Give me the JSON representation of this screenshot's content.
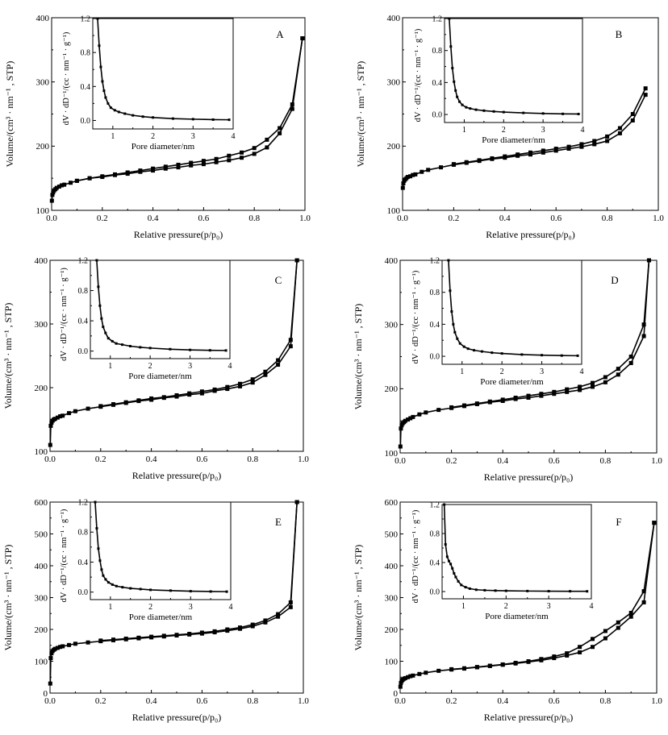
{
  "chart_data": [
    {
      "panel": "A",
      "type": "line",
      "xlabel": "Relative pressure(p/p₀)",
      "ylabel": "Volume/(cm³ · nm⁻¹ , STP)",
      "xlim": [
        0,
        1.0
      ],
      "ylim": [
        100,
        400
      ],
      "xticks": [
        0.0,
        0.2,
        0.4,
        0.6,
        0.8,
        1.0
      ],
      "yticks": [
        100,
        200,
        300,
        400
      ],
      "series": [
        {
          "x": [
            0.001,
            0.003,
            0.006,
            0.01,
            0.015,
            0.02,
            0.03,
            0.04,
            0.05,
            0.075,
            0.1,
            0.15,
            0.2,
            0.25,
            0.3,
            0.35,
            0.4,
            0.45,
            0.5,
            0.55,
            0.6,
            0.65,
            0.7,
            0.75,
            0.8,
            0.85,
            0.9,
            0.95,
            0.99
          ],
          "y": [
            115,
            124,
            128,
            131,
            133,
            135,
            137,
            139,
            140,
            143,
            146,
            150,
            152,
            155,
            157,
            160,
            162,
            165,
            167,
            170,
            172,
            175,
            178,
            182,
            188,
            198,
            220,
            258,
            368
          ]
        },
        {
          "x": [
            0.99,
            0.95,
            0.9,
            0.85,
            0.8,
            0.75,
            0.7,
            0.65,
            0.6,
            0.55,
            0.5,
            0.45,
            0.4,
            0.35,
            0.3,
            0.25,
            0.2,
            0.15,
            0.1
          ],
          "y": [
            368,
            265,
            228,
            210,
            197,
            190,
            185,
            180,
            177,
            174,
            171,
            168,
            165,
            162,
            159,
            156,
            153,
            150,
            146
          ]
        }
      ],
      "inset": {
        "xlabel": "Pore diameter/nm",
        "ylabel": "dV · dD⁻¹/(cc · nm⁻¹ · g⁻¹)",
        "xlim": [
          0.5,
          4
        ],
        "ylim": [
          -0.1,
          1.2
        ],
        "xticks": [
          1,
          2,
          3,
          4
        ],
        "yticks": [
          0.0,
          0.4,
          0.8,
          1.2
        ],
        "x": [
          0.62,
          0.66,
          0.7,
          0.74,
          0.78,
          0.82,
          0.88,
          0.95,
          1.05,
          1.15,
          1.3,
          1.5,
          1.75,
          2.0,
          2.5,
          3.0,
          3.5,
          3.9
        ],
        "y": [
          1.2,
          0.88,
          0.63,
          0.46,
          0.35,
          0.27,
          0.2,
          0.15,
          0.12,
          0.1,
          0.08,
          0.06,
          0.045,
          0.035,
          0.022,
          0.015,
          0.01,
          0.008
        ]
      }
    },
    {
      "panel": "B",
      "type": "line",
      "xlabel": "Relative pressure(p/p₀)",
      "ylabel": "Volume/(cm³ · nm⁻¹ , STP)",
      "xlim": [
        0,
        1.0
      ],
      "ylim": [
        100,
        400
      ],
      "xticks": [
        0.0,
        0.2,
        0.4,
        0.6,
        0.8,
        1.0
      ],
      "yticks": [
        100,
        200,
        300,
        400
      ],
      "series": [
        {
          "x": [
            0.001,
            0.003,
            0.006,
            0.01,
            0.015,
            0.02,
            0.03,
            0.04,
            0.05,
            0.075,
            0.1,
            0.15,
            0.2,
            0.25,
            0.3,
            0.35,
            0.4,
            0.45,
            0.5,
            0.55,
            0.6,
            0.65,
            0.7,
            0.75,
            0.8,
            0.85,
            0.9,
            0.95
          ],
          "y": [
            135,
            142,
            146,
            148,
            150,
            152,
            153,
            155,
            156,
            160,
            163,
            167,
            171,
            174,
            177,
            180,
            182,
            185,
            187,
            190,
            193,
            196,
            199,
            203,
            208,
            220,
            240,
            280
          ]
        },
        {
          "x": [
            0.95,
            0.9,
            0.85,
            0.8,
            0.75,
            0.7,
            0.65,
            0.6,
            0.55,
            0.5,
            0.45,
            0.4,
            0.35,
            0.3,
            0.25,
            0.2
          ],
          "y": [
            290,
            250,
            228,
            215,
            208,
            203,
            199,
            196,
            193,
            190,
            187,
            184,
            181,
            178,
            175,
            172
          ]
        }
      ],
      "inset": {
        "xlabel": "Pore diameter/nm",
        "ylabel": "dV · dD⁻¹/(cc · nm⁻¹ · g⁻¹)",
        "xlim": [
          0.5,
          4
        ],
        "ylim": [
          -0.1,
          1.2
        ],
        "xticks": [
          1,
          2,
          3,
          4
        ],
        "yticks": [
          0.0,
          0.4,
          0.8,
          1.2
        ],
        "x": [
          0.62,
          0.66,
          0.7,
          0.74,
          0.78,
          0.82,
          0.88,
          0.95,
          1.05,
          1.15,
          1.3,
          1.5,
          1.75,
          2.0,
          2.5,
          3.0,
          3.5,
          3.9
        ],
        "y": [
          1.2,
          0.85,
          0.58,
          0.41,
          0.3,
          0.22,
          0.16,
          0.12,
          0.09,
          0.075,
          0.06,
          0.048,
          0.038,
          0.03,
          0.02,
          0.013,
          0.008,
          0.006
        ]
      }
    },
    {
      "panel": "C",
      "type": "line",
      "xlabel": "Relative pressure(p/p₀)",
      "ylabel": "Volume/(cm³ · nm⁻¹ , STP)",
      "xlim": [
        0,
        1.0
      ],
      "ylim": [
        100,
        400
      ],
      "xticks": [
        0.0,
        0.2,
        0.4,
        0.6,
        0.8,
        1.0
      ],
      "yticks": [
        100,
        200,
        300,
        400
      ],
      "series": [
        {
          "x": [
            0.001,
            0.003,
            0.006,
            0.01,
            0.015,
            0.02,
            0.03,
            0.04,
            0.05,
            0.075,
            0.1,
            0.15,
            0.2,
            0.25,
            0.3,
            0.35,
            0.4,
            0.45,
            0.5,
            0.55,
            0.6,
            0.65,
            0.7,
            0.75,
            0.8,
            0.85,
            0.9,
            0.95,
            0.975
          ],
          "y": [
            110,
            140,
            145,
            148,
            150,
            151,
            153,
            155,
            156,
            160,
            163,
            167,
            170,
            173,
            176,
            179,
            181,
            184,
            186,
            189,
            191,
            195,
            198,
            202,
            208,
            220,
            236,
            265,
            400
          ]
        },
        {
          "x": [
            0.975,
            0.95,
            0.9,
            0.85,
            0.8,
            0.75,
            0.7,
            0.65,
            0.6,
            0.55,
            0.5,
            0.45,
            0.4,
            0.35,
            0.3,
            0.25,
            0.2
          ],
          "y": [
            400,
            275,
            243,
            225,
            213,
            206,
            201,
            197,
            194,
            191,
            188,
            185,
            183,
            180,
            177,
            174,
            171
          ]
        }
      ],
      "inset": {
        "xlabel": "Pore diameter/nm",
        "ylabel": "dV · dD⁻¹/(cc · nm⁻¹ · g⁻¹)",
        "xlim": [
          0.5,
          4
        ],
        "ylim": [
          -0.1,
          1.2
        ],
        "xticks": [
          1,
          2,
          3,
          4
        ],
        "yticks": [
          0.0,
          0.4,
          0.8,
          1.2
        ],
        "x": [
          0.66,
          0.7,
          0.74,
          0.78,
          0.82,
          0.88,
          0.95,
          1.05,
          1.15,
          1.3,
          1.5,
          1.75,
          2.0,
          2.5,
          3.0,
          3.5,
          3.9
        ],
        "y": [
          1.2,
          0.85,
          0.6,
          0.43,
          0.32,
          0.24,
          0.17,
          0.13,
          0.1,
          0.085,
          0.065,
          0.05,
          0.04,
          0.025,
          0.015,
          0.01,
          0.008
        ]
      }
    },
    {
      "panel": "D",
      "type": "line",
      "xlabel": "Relative pressure(p/p₀)",
      "ylabel": "Volume/(cm³ · nm⁻¹ , STP)",
      "xlim": [
        0,
        1.0
      ],
      "ylim": [
        100,
        400
      ],
      "xticks": [
        0.0,
        0.2,
        0.4,
        0.6,
        0.8,
        1.0
      ],
      "yticks": [
        100,
        200,
        300,
        400
      ],
      "series": [
        {
          "x": [
            0.001,
            0.003,
            0.006,
            0.01,
            0.015,
            0.02,
            0.03,
            0.04,
            0.05,
            0.075,
            0.1,
            0.15,
            0.2,
            0.25,
            0.3,
            0.35,
            0.4,
            0.45,
            0.5,
            0.55,
            0.6,
            0.65,
            0.7,
            0.75,
            0.8,
            0.85,
            0.9,
            0.95,
            0.97
          ],
          "y": [
            110,
            138,
            143,
            146,
            148,
            150,
            152,
            154,
            156,
            160,
            163,
            167,
            170,
            173,
            176,
            179,
            181,
            184,
            186,
            189,
            192,
            195,
            198,
            203,
            210,
            222,
            240,
            282,
            400
          ]
        },
        {
          "x": [
            0.97,
            0.95,
            0.9,
            0.85,
            0.8,
            0.75,
            0.7,
            0.65,
            0.6,
            0.55,
            0.5,
            0.45,
            0.4,
            0.35,
            0.3,
            0.25,
            0.2
          ],
          "y": [
            400,
            300,
            250,
            231,
            218,
            209,
            203,
            199,
            195,
            192,
            189,
            186,
            183,
            180,
            177,
            174,
            171
          ]
        }
      ],
      "inset": {
        "xlabel": "Pore diameter/nm",
        "ylabel": "dV · dD⁻¹/(cc · nm⁻¹ · g⁻¹)",
        "xlim": [
          0.5,
          4
        ],
        "ylim": [
          -0.1,
          1.2
        ],
        "xticks": [
          1,
          2,
          3,
          4
        ],
        "yticks": [
          0.0,
          0.4,
          0.8,
          1.2
        ],
        "x": [
          0.66,
          0.7,
          0.74,
          0.78,
          0.82,
          0.88,
          0.95,
          1.05,
          1.15,
          1.3,
          1.5,
          1.75,
          2.0,
          2.5,
          3.0,
          3.5,
          3.9
        ],
        "y": [
          1.2,
          0.82,
          0.56,
          0.4,
          0.3,
          0.22,
          0.16,
          0.12,
          0.095,
          0.075,
          0.06,
          0.045,
          0.035,
          0.022,
          0.014,
          0.009,
          0.007
        ]
      }
    },
    {
      "panel": "E",
      "type": "line",
      "xlabel": "Relative pressure(p/p₀)",
      "ylabel": "Volume/(cm³ · nm⁻¹ , STP)",
      "xlim": [
        0,
        1.0
      ],
      "ylim": [
        0,
        600
      ],
      "xticks": [
        0.0,
        0.2,
        0.4,
        0.6,
        0.8,
        1.0
      ],
      "yticks": [
        0,
        100,
        200,
        300,
        400,
        500,
        600
      ],
      "series": [
        {
          "x": [
            0.001,
            0.003,
            0.006,
            0.01,
            0.015,
            0.02,
            0.03,
            0.04,
            0.05,
            0.075,
            0.1,
            0.15,
            0.2,
            0.25,
            0.3,
            0.35,
            0.4,
            0.45,
            0.5,
            0.55,
            0.6,
            0.65,
            0.7,
            0.75,
            0.8,
            0.85,
            0.9,
            0.95,
            0.975
          ],
          "y": [
            30,
            110,
            125,
            132,
            136,
            139,
            142,
            145,
            147,
            151,
            155,
            159,
            163,
            166,
            169,
            172,
            175,
            178,
            181,
            184,
            187,
            191,
            196,
            202,
            210,
            222,
            240,
            270,
            600
          ]
        },
        {
          "x": [
            0.975,
            0.95,
            0.9,
            0.85,
            0.8,
            0.75,
            0.7,
            0.65,
            0.6,
            0.55,
            0.5,
            0.45,
            0.4,
            0.35,
            0.3,
            0.25,
            0.2
          ],
          "y": [
            600,
            285,
            248,
            228,
            215,
            206,
            200,
            194,
            190,
            186,
            183,
            180,
            177,
            174,
            171,
            168,
            165
          ]
        }
      ],
      "inset": {
        "xlabel": "Pore diameter/nm",
        "ylabel": "dV · dD⁻¹/(cc · nm⁻¹ · g⁻¹)",
        "xlim": [
          0.5,
          4
        ],
        "ylim": [
          -0.1,
          1.2
        ],
        "xticks": [
          1,
          2,
          3,
          4
        ],
        "yticks": [
          0.0,
          0.4,
          0.8,
          1.2
        ],
        "x": [
          0.62,
          0.66,
          0.7,
          0.74,
          0.78,
          0.82,
          0.88,
          0.95,
          1.05,
          1.15,
          1.3,
          1.5,
          1.75,
          2.0,
          2.5,
          3.0,
          3.5,
          3.9
        ],
        "y": [
          1.2,
          0.85,
          0.58,
          0.42,
          0.3,
          0.22,
          0.17,
          0.13,
          0.1,
          0.08,
          0.065,
          0.05,
          0.04,
          0.03,
          0.02,
          0.012,
          0.008,
          0.006
        ]
      }
    },
    {
      "panel": "F",
      "type": "line",
      "xlabel": "Relative pressure(p/p₀)",
      "ylabel": "Volume/(cm³ · nm⁻¹ , STP)",
      "xlim": [
        0,
        1.0
      ],
      "ylim": [
        0,
        600
      ],
      "xticks": [
        0.0,
        0.2,
        0.4,
        0.6,
        0.8,
        1.0
      ],
      "yticks": [
        0,
        100,
        200,
        300,
        400,
        500,
        600
      ],
      "series": [
        {
          "x": [
            0.001,
            0.003,
            0.006,
            0.01,
            0.015,
            0.02,
            0.03,
            0.04,
            0.05,
            0.075,
            0.1,
            0.15,
            0.2,
            0.25,
            0.3,
            0.35,
            0.4,
            0.45,
            0.5,
            0.55,
            0.6,
            0.65,
            0.7,
            0.75,
            0.8,
            0.85,
            0.9,
            0.95,
            0.99
          ],
          "y": [
            20,
            32,
            38,
            42,
            45,
            47,
            50,
            53,
            55,
            60,
            64,
            70,
            74,
            77,
            81,
            85,
            89,
            93,
            98,
            103,
            110,
            118,
            128,
            145,
            172,
            205,
            240,
            285,
            535
          ]
        },
        {
          "x": [
            0.99,
            0.95,
            0.9,
            0.85,
            0.8,
            0.75,
            0.7,
            0.65,
            0.6,
            0.55,
            0.5,
            0.45,
            0.4,
            0.35,
            0.3,
            0.25,
            0.2
          ],
          "y": [
            535,
            320,
            252,
            222,
            195,
            170,
            145,
            125,
            115,
            107,
            100,
            95,
            90,
            86,
            82,
            78,
            75
          ]
        }
      ],
      "inset": {
        "xlabel": "Pore diameter/nm",
        "ylabel": "dV · dD⁻¹/(cc · nm⁻¹ · g⁻¹)",
        "xlim": [
          0.5,
          4
        ],
        "ylim": [
          -0.1,
          1.2
        ],
        "xticks": [
          1,
          2,
          3,
          4
        ],
        "yticks": [
          0.0,
          0.4,
          0.8,
          1.2
        ],
        "x": [
          0.55,
          0.58,
          0.62,
          0.66,
          0.7,
          0.74,
          0.78,
          0.82,
          0.88,
          0.95,
          1.05,
          1.15,
          1.3,
          1.5,
          1.75,
          2.0,
          2.5,
          3.0,
          3.5,
          3.9
        ],
        "y": [
          1.2,
          0.65,
          0.48,
          0.42,
          0.38,
          0.32,
          0.25,
          0.2,
          0.14,
          0.09,
          0.06,
          0.04,
          0.025,
          0.018,
          0.013,
          0.01,
          0.007,
          0.005,
          0.004,
          0.003
        ]
      }
    }
  ]
}
